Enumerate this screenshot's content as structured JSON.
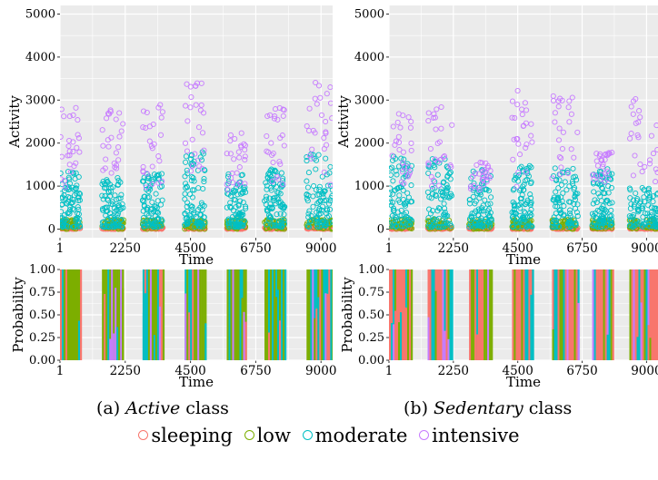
{
  "chart_data": [
    {
      "type": "scatter",
      "panel": "Active class",
      "xlabel": "Time",
      "ylabel": "Activity",
      "xlim": [
        1,
        9400
      ],
      "ylim": [
        -200,
        5200
      ],
      "x_ticks": [
        1,
        2250,
        4500,
        6750,
        9000
      ],
      "x_tick_labels": [
        "1",
        "2250",
        "4500",
        "6750",
        "9000"
      ],
      "y_ticks": [
        0,
        1000,
        2000,
        3000,
        4000,
        5000
      ],
      "y_tick_labels": [
        "0",
        "1000",
        "2000",
        "3000",
        "4000",
        "5000"
      ],
      "grid": true,
      "background": "#ebebeb",
      "activity_bursts": [
        {
          "x_start": 0,
          "x_end": 700,
          "moderate_max": 1350,
          "intensive_max": 2950
        },
        {
          "x_start": 1450,
          "x_end": 2200,
          "moderate_max": 1250,
          "intensive_max": 2800
        },
        {
          "x_start": 2850,
          "x_end": 3550,
          "moderate_max": 1350,
          "intensive_max": 3000
        },
        {
          "x_start": 4300,
          "x_end": 5000,
          "moderate_max": 1850,
          "intensive_max": 3450
        },
        {
          "x_start": 5750,
          "x_end": 6400,
          "moderate_max": 1300,
          "intensive_max": 2250
        },
        {
          "x_start": 7050,
          "x_end": 7750,
          "moderate_max": 1400,
          "intensive_max": 2850
        },
        {
          "x_start": 8500,
          "x_end": 9400,
          "moderate_max": 1800,
          "intensive_max": 3450
        }
      ]
    },
    {
      "type": "area",
      "panel": "Active class",
      "xlabel": "Time",
      "ylabel": "Probability",
      "xlim": [
        1,
        9400
      ],
      "ylim": [
        0,
        1
      ],
      "x_ticks": [
        1,
        2250,
        4500,
        6750,
        9000
      ],
      "x_tick_labels": [
        "1",
        "2250",
        "4500",
        "6750",
        "9000"
      ],
      "y_ticks": [
        0,
        0.25,
        0.5,
        0.75,
        1
      ],
      "y_tick_labels": [
        "0.00",
        "0.25",
        "0.50",
        "0.75",
        "1.00"
      ],
      "grid": true,
      "background": "#ebebeb",
      "active_segments": [
        [
          0,
          700
        ],
        [
          1450,
          2200
        ],
        [
          2850,
          3550
        ],
        [
          4300,
          5000
        ],
        [
          5750,
          6400
        ],
        [
          7050,
          7750
        ],
        [
          8500,
          9400
        ]
      ],
      "dominant_state": "low"
    },
    {
      "type": "scatter",
      "panel": "Sedentary class",
      "xlabel": "Time",
      "ylabel": "Activity",
      "xlim": [
        1,
        9400
      ],
      "ylim": [
        -200,
        5200
      ],
      "x_ticks": [
        1,
        2250,
        4500,
        6750,
        9000
      ],
      "x_tick_labels": [
        "1",
        "2250",
        "4500",
        "6750",
        "9000"
      ],
      "y_ticks": [
        0,
        1000,
        2000,
        3000,
        4000,
        5000
      ],
      "y_tick_labels": [
        "0",
        "1000",
        "2000",
        "3000",
        "4000",
        "5000"
      ],
      "grid": true,
      "background": "#ebebeb",
      "activity_bursts": [
        {
          "x_start": 0,
          "x_end": 800,
          "moderate_max": 1700,
          "intensive_max": 2750
        },
        {
          "x_start": 1350,
          "x_end": 2200,
          "moderate_max": 1650,
          "intensive_max": 2850
        },
        {
          "x_start": 2800,
          "x_end": 3600,
          "moderate_max": 1450,
          "intensive_max": 1550
        },
        {
          "x_start": 4300,
          "x_end": 5000,
          "moderate_max": 1500,
          "intensive_max": 3250
        },
        {
          "x_start": 5700,
          "x_end": 6600,
          "moderate_max": 1450,
          "intensive_max": 3100
        },
        {
          "x_start": 7100,
          "x_end": 7800,
          "moderate_max": 1450,
          "intensive_max": 1800
        },
        {
          "x_start": 8400,
          "x_end": 9400,
          "moderate_max": 1050,
          "intensive_max": 3050
        }
      ]
    },
    {
      "type": "area",
      "panel": "Sedentary class",
      "xlabel": "Time",
      "ylabel": "Probability",
      "xlim": [
        1,
        9400
      ],
      "ylim": [
        0,
        1
      ],
      "x_ticks": [
        1,
        2250,
        4500,
        6750,
        9000
      ],
      "x_tick_labels": [
        "1",
        "2250",
        "4500",
        "6750",
        "9000"
      ],
      "y_ticks": [
        0,
        0.25,
        0.5,
        0.75,
        1
      ],
      "y_tick_labels": [
        "0.00",
        "0.25",
        "0.50",
        "0.75",
        "1.00"
      ],
      "grid": true,
      "background": "#ebebeb",
      "active_segments": [
        [
          0,
          800
        ],
        [
          1350,
          2200
        ],
        [
          2800,
          3600
        ],
        [
          4300,
          5000
        ],
        [
          5700,
          6600
        ],
        [
          7100,
          7800
        ],
        [
          8400,
          9400
        ]
      ],
      "dominant_state": "sleeping"
    }
  ],
  "legend": {
    "placement": "bottom",
    "entries": [
      {
        "label": "sleeping",
        "color": "#f8766d"
      },
      {
        "label": "low",
        "color": "#7cae00"
      },
      {
        "label": "moderate",
        "color": "#00bfc4"
      },
      {
        "label": "intensive",
        "color": "#c77cff"
      }
    ]
  },
  "captions": {
    "a": {
      "prefix": "(a) ",
      "emph": "Active",
      "suffix": " class"
    },
    "b": {
      "prefix": "(b) ",
      "emph": "Sedentary",
      "suffix": " class"
    }
  }
}
